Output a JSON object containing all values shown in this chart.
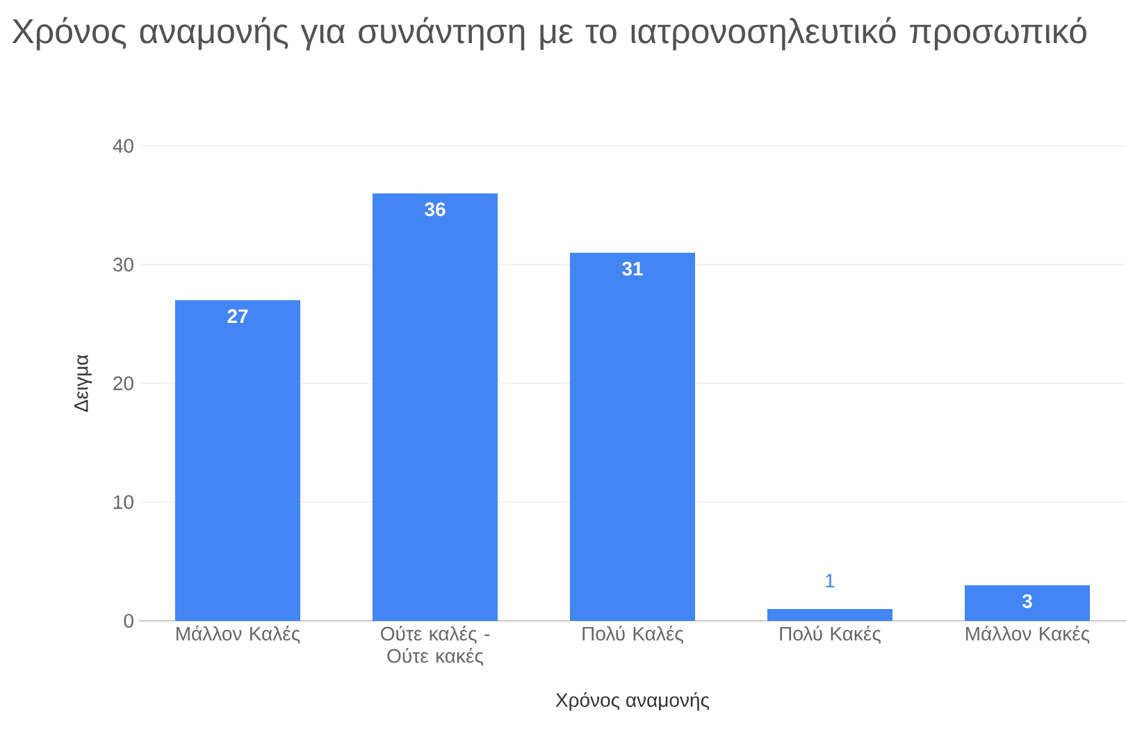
{
  "chart_data": {
    "type": "bar",
    "title": "Χρόνος αναμονής για συνάντηση με το ιατρονοσηλευτικό προσωπικό",
    "xlabel": "Χρόνος αναμονής",
    "ylabel": "Δειγμα",
    "categories": [
      "Μάλλον Καλές",
      "Ούτε καλές - Ούτε κακές",
      "Πολύ Καλές",
      "Πολύ Κακές",
      "Μάλλον Κακές"
    ],
    "values": [
      27,
      36,
      31,
      1,
      3
    ],
    "color": "#4285f4",
    "ylim": [
      0,
      40
    ],
    "yticks": [
      0,
      10,
      20,
      30,
      40
    ],
    "grid": "y",
    "data_labels": true
  }
}
